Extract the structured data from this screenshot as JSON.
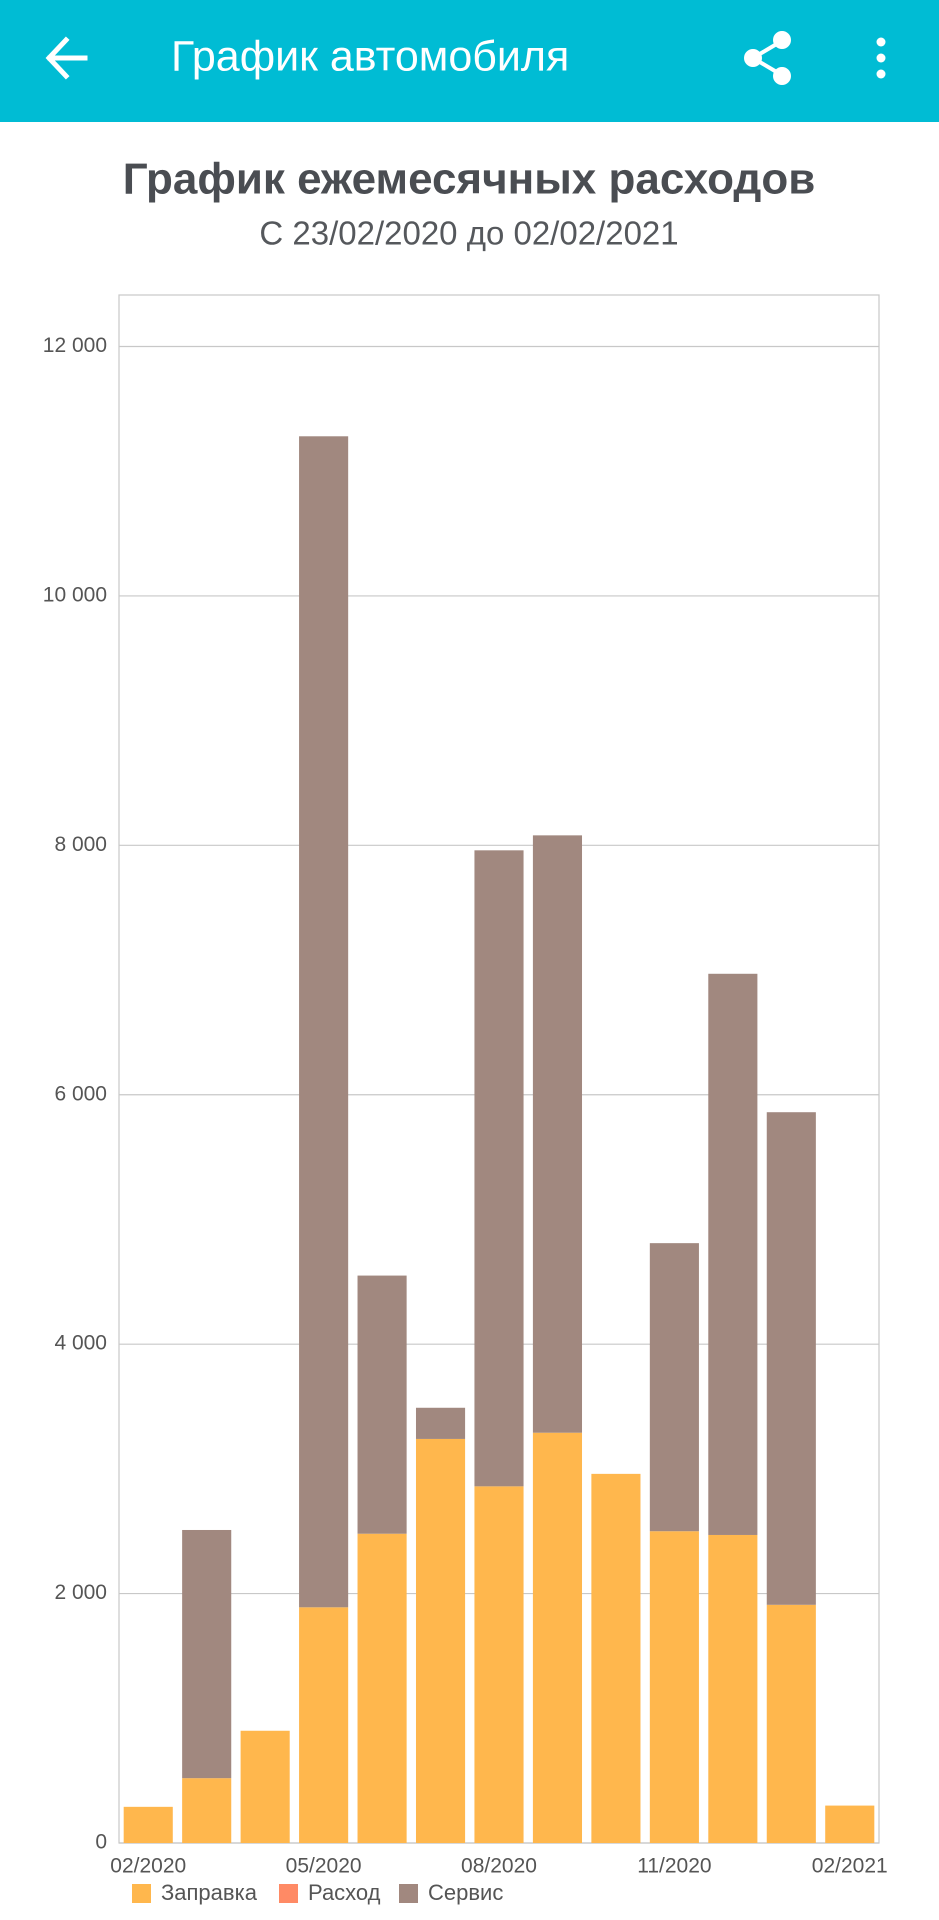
{
  "app_bar": {
    "title": "График автомобиля"
  },
  "chart_data": {
    "type": "bar",
    "stacked": true,
    "title": "График ежемесячных расходов",
    "subtitle": "С 23/02/2020 до 02/02/2021",
    "categories": [
      "02/2020",
      null,
      null,
      "05/2020",
      null,
      null,
      "08/2020",
      null,
      null,
      "11/2020",
      null,
      null,
      "02/2021"
    ],
    "series": [
      {
        "name": "Заправка",
        "color": "#FFB74D",
        "values": [
          290,
          520,
          900,
          1890,
          2480,
          3240,
          2860,
          3290,
          2960,
          2500,
          2470,
          1910,
          300
        ]
      },
      {
        "name": "Расход",
        "color": "#FF8A65",
        "values": [
          0,
          0,
          0,
          0,
          0,
          0,
          0,
          0,
          0,
          0,
          0,
          0,
          0
        ]
      },
      {
        "name": "Сервис",
        "color": "#A1887F",
        "values": [
          0,
          1990,
          0,
          9390,
          2070,
          250,
          5100,
          4790,
          0,
          2310,
          4500,
          3950,
          0
        ]
      }
    ],
    "ylim": [
      0,
      12400
    ],
    "yticks": [
      0,
      {
        "value": 2000,
        "label": "2 000"
      },
      {
        "value": 4000,
        "label": "4 000"
      },
      {
        "value": 6000,
        "label": "6 000"
      },
      {
        "value": 8000,
        "label": "8 000"
      },
      {
        "value": 10000,
        "label": "10 000"
      },
      {
        "value": 12000,
        "label": "12 000"
      }
    ],
    "grid": true,
    "legend": "bottom"
  }
}
